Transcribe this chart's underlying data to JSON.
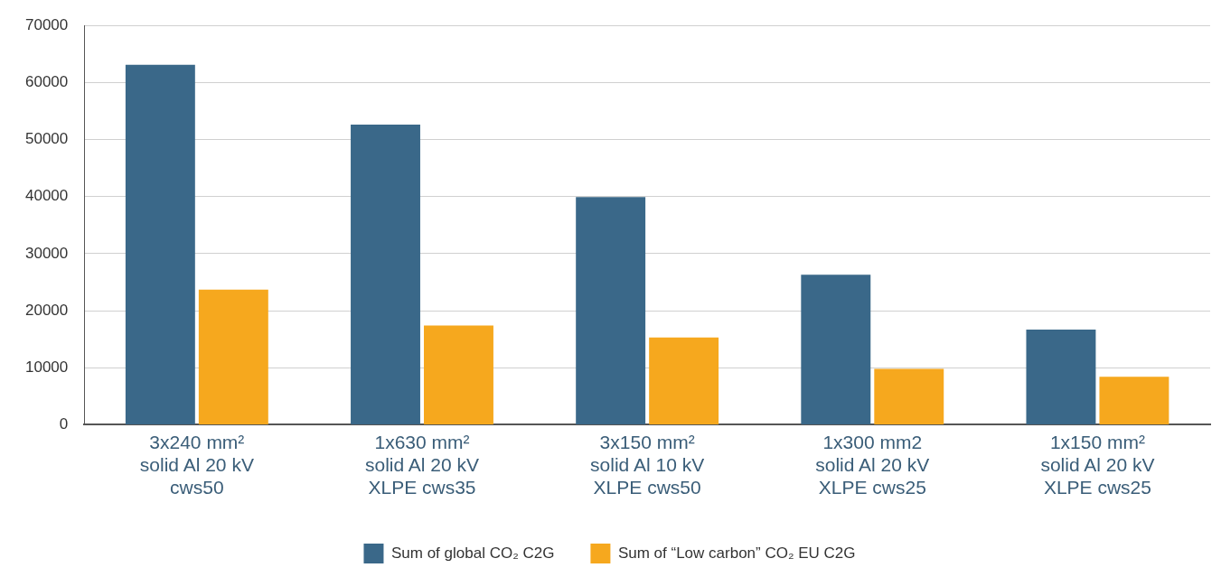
{
  "chart_data": {
    "type": "bar",
    "categories": [
      "3x240 mm²\nsolid Al 20 kV\ncws50",
      "1x630 mm²\nsolid Al 20 kV\nXLPE cws35",
      "3x150 mm²\nsolid Al 10 kV\nXLPE cws50",
      "1x300 mm2\nsolid Al 20 kV\nXLPE cws25",
      "1x150 mm²\nsolid Al 20 kV\nXLPE cws25"
    ],
    "series": [
      {
        "name": "Sum of global CO₂ C2G",
        "color": "#3a6889",
        "values": [
          63100,
          52600,
          39900,
          26300,
          16700
        ]
      },
      {
        "name": "Sum of “Low carbon” CO₂ EU C2G",
        "color": "#f6a81e",
        "values": [
          23700,
          17400,
          15300,
          9800,
          8400
        ]
      }
    ],
    "ylim": [
      0,
      70000
    ],
    "yticks": [
      0,
      10000,
      20000,
      30000,
      40000,
      50000,
      60000,
      70000
    ],
    "grid": "y",
    "legend": "bottom"
  }
}
